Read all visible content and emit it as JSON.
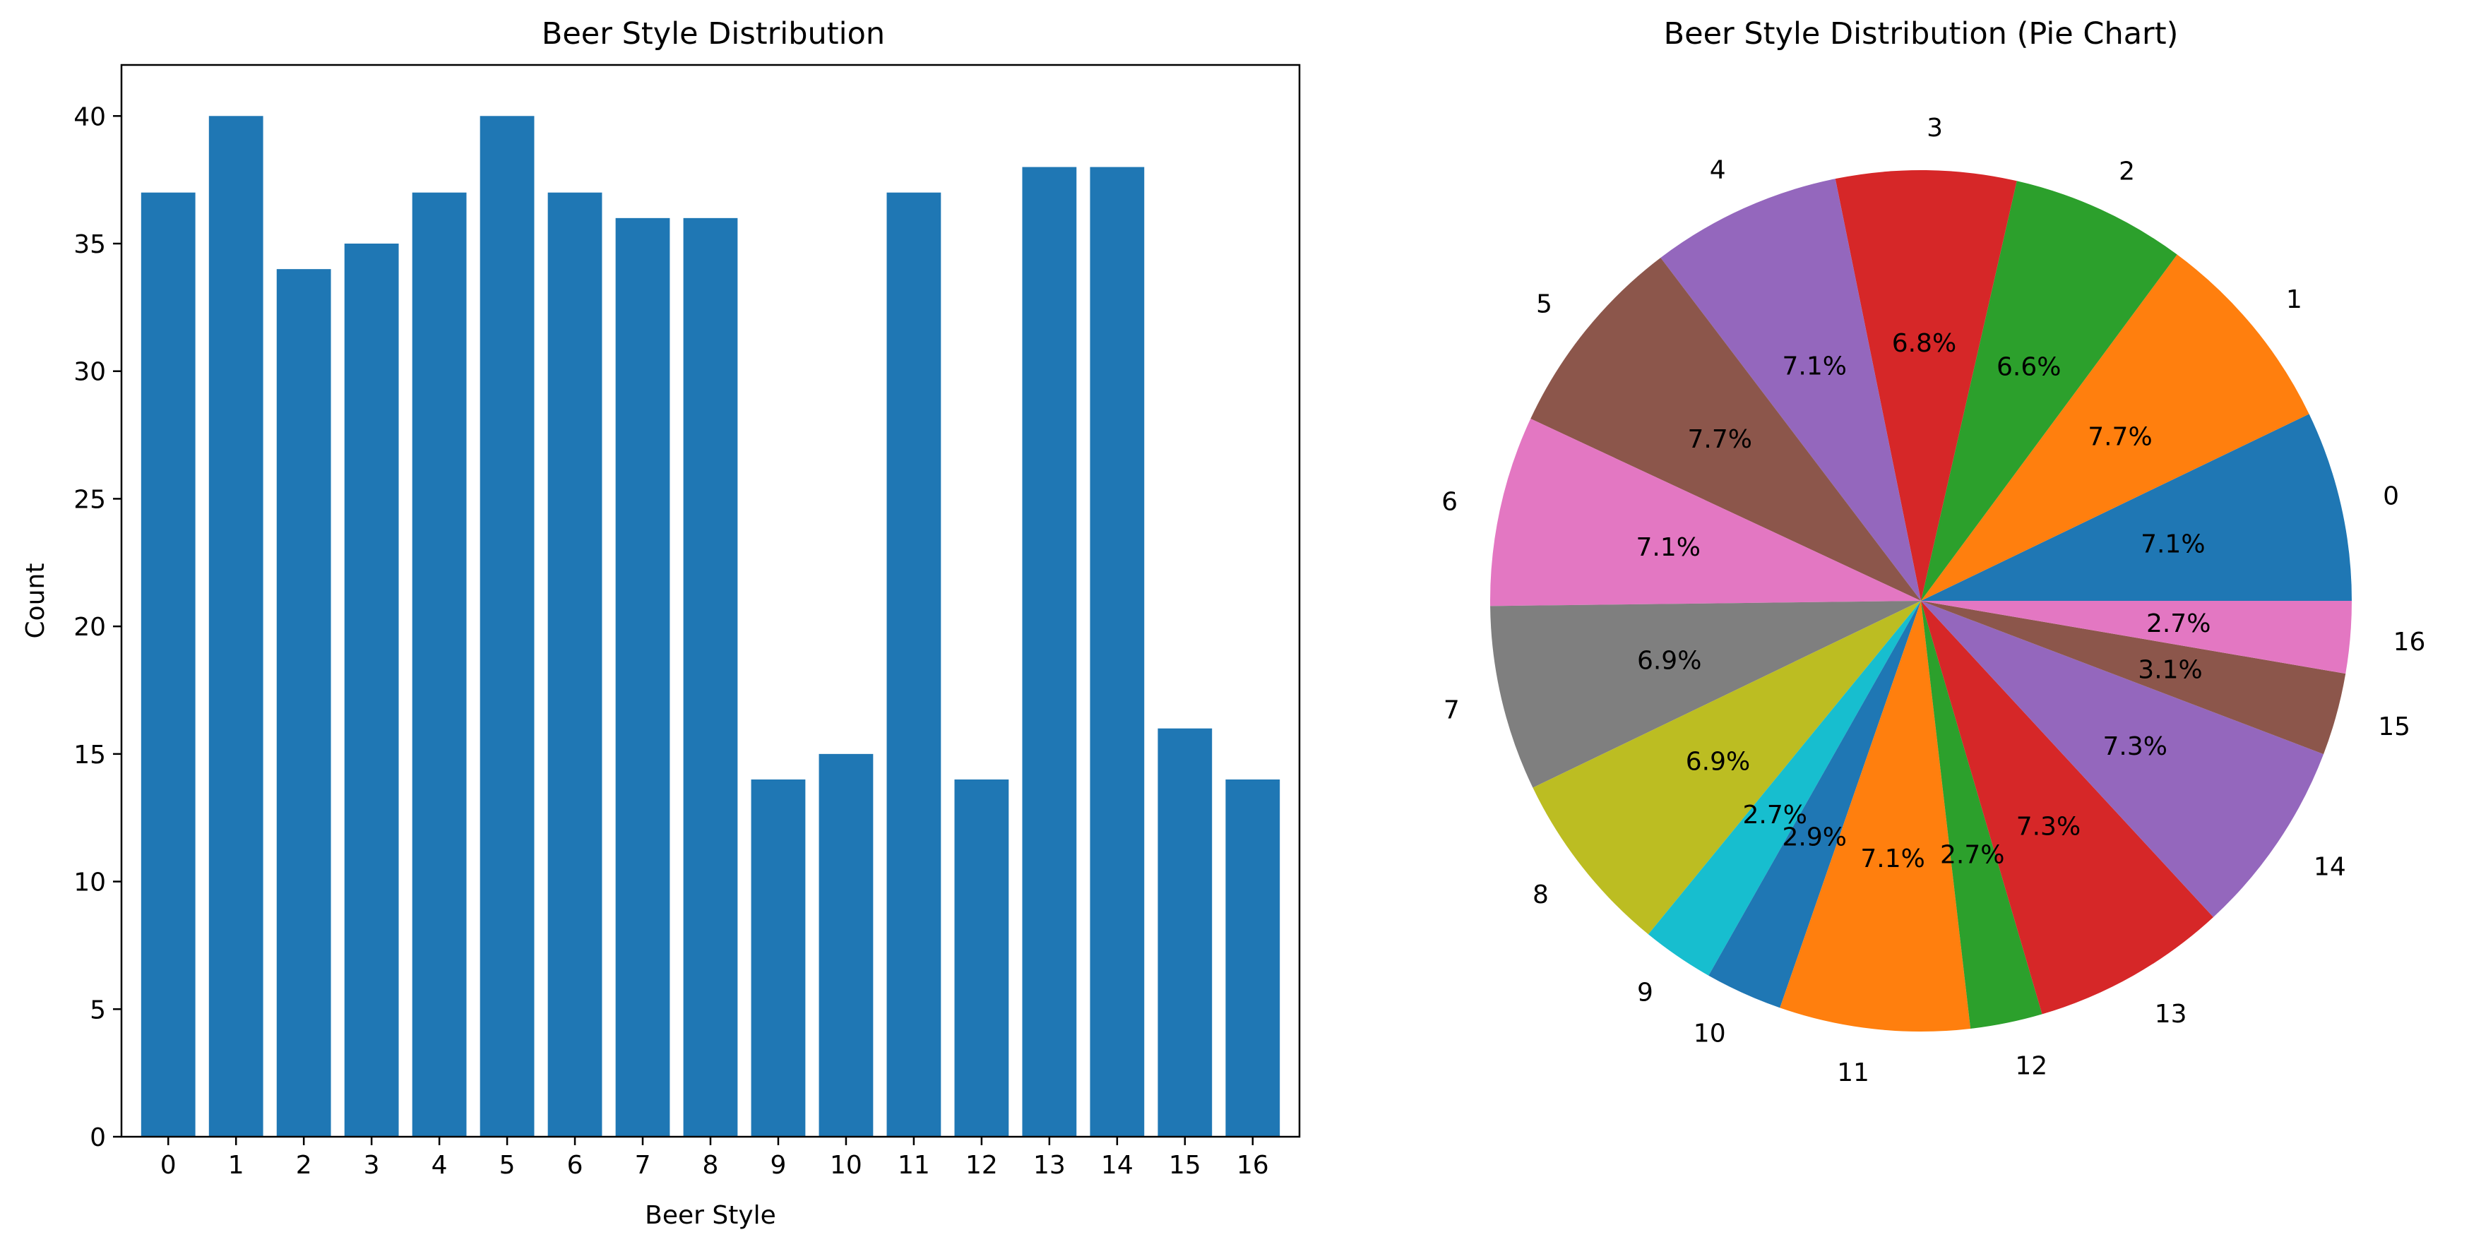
{
  "chart_data": [
    {
      "type": "bar",
      "title": "Beer Style Distribution",
      "xlabel": "Beer Style",
      "ylabel": "Count",
      "categories": [
        "0",
        "1",
        "2",
        "3",
        "4",
        "5",
        "6",
        "7",
        "8",
        "9",
        "10",
        "11",
        "12",
        "13",
        "14",
        "15",
        "16"
      ],
      "values": [
        37,
        40,
        34,
        35,
        37,
        40,
        37,
        36,
        36,
        14,
        15,
        37,
        14,
        38,
        38,
        16,
        14
      ],
      "yticks": [
        0,
        5,
        10,
        15,
        20,
        25,
        30,
        35,
        40
      ],
      "ylim": [
        0,
        42
      ],
      "color": "#1f77b4",
      "grid": false
    },
    {
      "type": "pie",
      "title": "Beer Style Distribution (Pie Chart)",
      "labels": [
        "0",
        "1",
        "2",
        "3",
        "4",
        "5",
        "6",
        "7",
        "8",
        "9",
        "10",
        "11",
        "12",
        "13",
        "14",
        "15",
        "16"
      ],
      "values": [
        37,
        40,
        34,
        35,
        37,
        40,
        37,
        36,
        36,
        14,
        15,
        37,
        14,
        38,
        38,
        16,
        14
      ],
      "percent_labels": [
        "7.1%",
        "7.7%",
        "6.6%",
        "6.8%",
        "7.1%",
        "7.7%",
        "7.1%",
        "6.9%",
        "6.9%",
        "2.7%",
        "2.9%",
        "7.1%",
        "2.7%",
        "7.3%",
        "7.3%",
        "3.1%",
        "2.7%"
      ],
      "colors": [
        "#1f77b4",
        "#ff7f0e",
        "#2ca02c",
        "#d62728",
        "#9467bd",
        "#8c564b",
        "#e377c2",
        "#7f7f7f",
        "#bcbd22",
        "#17becf",
        "#1f77b4",
        "#ff7f0e",
        "#2ca02c",
        "#d62728",
        "#9467bd",
        "#8c564b",
        "#e377c2"
      ],
      "start_angle_deg": 0,
      "direction": "counterclockwise"
    }
  ]
}
